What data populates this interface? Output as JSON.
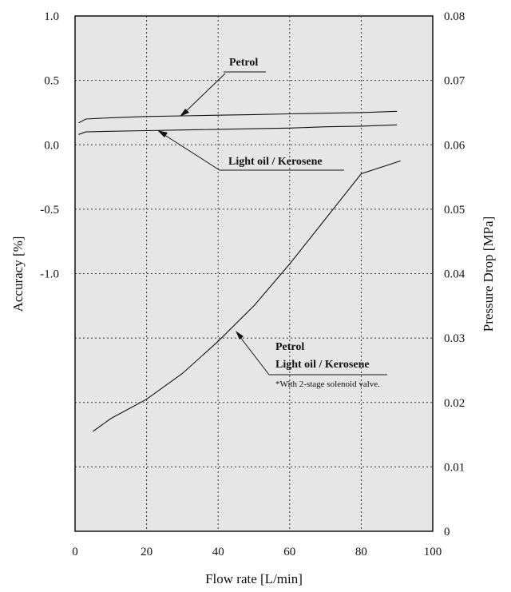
{
  "chart_data": {
    "type": "line",
    "xlabel": "Flow rate [L/min]",
    "ylabel_left": "Accuracy [%]",
    "ylabel_right": "Pressure Drop [MPa]",
    "xlim": [
      0,
      100
    ],
    "ylim_left": [
      -3.0,
      1.0
    ],
    "ylim_right": [
      0,
      0.08
    ],
    "grid": true,
    "x_ticks": [
      {
        "value": 0,
        "label": "0"
      },
      {
        "value": 20,
        "label": "20"
      },
      {
        "value": 40,
        "label": "40"
      },
      {
        "value": 60,
        "label": "60"
      },
      {
        "value": 80,
        "label": "80"
      },
      {
        "value": 100,
        "label": "100"
      }
    ],
    "y_left_ticks": [
      {
        "value": 1.0,
        "label": "1.0"
      },
      {
        "value": 0.5,
        "label": "0.5"
      },
      {
        "value": 0.0,
        "label": "0.0"
      },
      {
        "value": -0.5,
        "label": "-0.5"
      },
      {
        "value": -1.0,
        "label": "-1.0"
      }
    ],
    "y_right_ticks": [
      {
        "value": 0.08,
        "label": "0.08"
      },
      {
        "value": 0.07,
        "label": "0.07"
      },
      {
        "value": 0.06,
        "label": "0.06"
      },
      {
        "value": 0.05,
        "label": "0.05"
      },
      {
        "value": 0.04,
        "label": "0.04"
      },
      {
        "value": 0.03,
        "label": "0.03"
      },
      {
        "value": 0.02,
        "label": "0.02"
      },
      {
        "value": 0.01,
        "label": "0.01"
      },
      {
        "value": 0,
        "label": "0"
      }
    ],
    "grid_y_right": [
      0.01,
      0.02,
      0.03,
      0.04,
      0.05,
      0.06,
      0.07
    ],
    "series": [
      {
        "name": "Petrol",
        "axis": "left",
        "x": [
          1,
          3,
          10,
          20,
          30,
          40,
          50,
          60,
          70,
          80,
          90
        ],
        "y": [
          0.17,
          0.2,
          0.21,
          0.22,
          0.225,
          0.23,
          0.235,
          0.24,
          0.245,
          0.25,
          0.26
        ]
      },
      {
        "name": "Light oil / Kerosene",
        "axis": "left",
        "x": [
          1,
          3,
          10,
          20,
          30,
          40,
          50,
          60,
          70,
          80,
          90
        ],
        "y": [
          0.08,
          0.1,
          0.105,
          0.11,
          0.115,
          0.12,
          0.125,
          0.13,
          0.14,
          0.145,
          0.155
        ]
      },
      {
        "name": "Petrol / Light oil / Kerosene (pressure drop)",
        "axis": "right",
        "x": [
          5,
          10,
          20,
          30,
          40,
          50,
          60,
          70,
          80,
          91
        ],
        "y": [
          0.0155,
          0.0175,
          0.0205,
          0.0245,
          0.0295,
          0.035,
          0.0415,
          0.0485,
          0.0555,
          0.0575
        ]
      }
    ],
    "annotations": {
      "petrol_top": "Petrol",
      "light_oil_top": "Light oil / Kerosene",
      "petrol_bottom": "Petrol",
      "light_oil_bottom": "Light oil / Kerosene",
      "note": "*With 2-stage solenoid valve."
    }
  }
}
